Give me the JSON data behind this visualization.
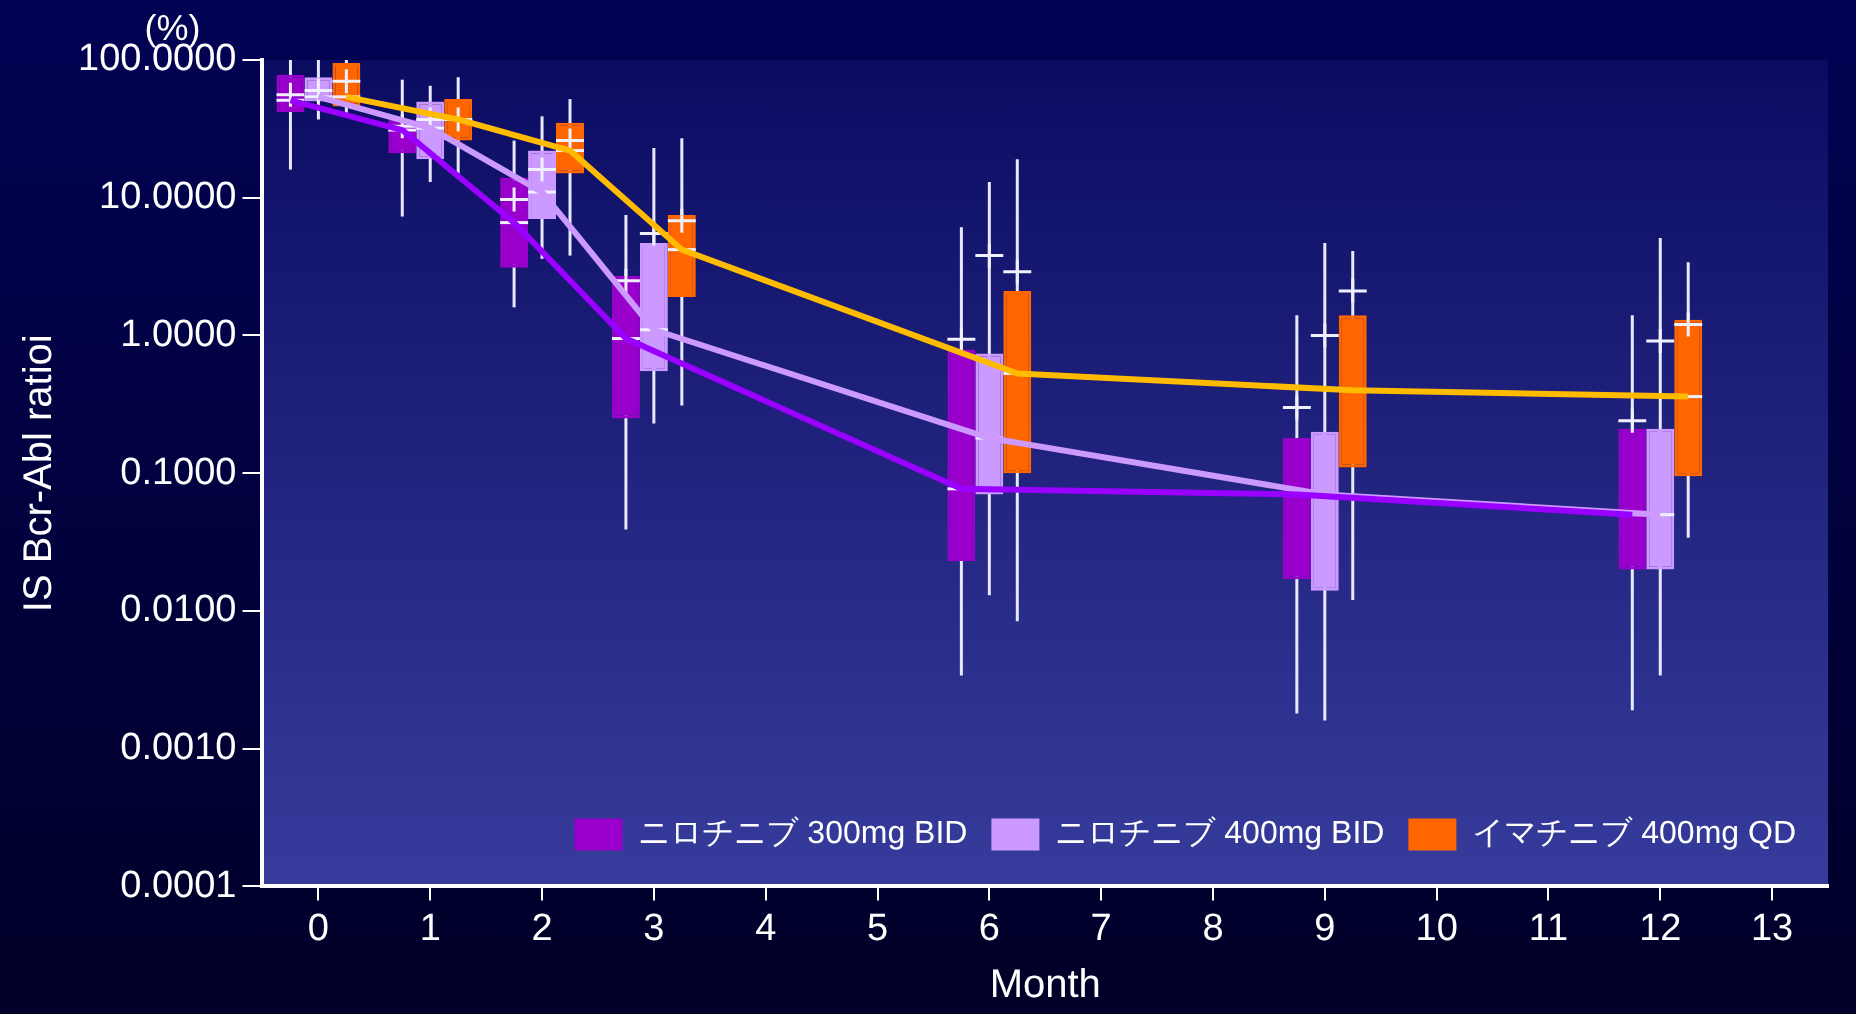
{
  "chart_data": {
    "type": "box",
    "xlabel": "Month",
    "ylabel": "IS Bcr-Abl ratioi",
    "annotations": [
      "(%)"
    ],
    "x": [
      0,
      1,
      2,
      3,
      6,
      9,
      12
    ],
    "xlim": [
      -0.5,
      13.5
    ],
    "xticks": [
      0,
      1,
      2,
      3,
      4,
      5,
      6,
      7,
      8,
      9,
      10,
      11,
      12,
      13
    ],
    "ylim": [
      0.0001,
      100
    ],
    "yticks": [
      {
        "value": 0.0001,
        "label": "0.0001"
      },
      {
        "value": 0.001,
        "label": "0.0010"
      },
      {
        "value": 0.01,
        "label": "0.0100"
      },
      {
        "value": 0.1,
        "label": "0.1000"
      },
      {
        "value": 1,
        "label": "1.0000"
      },
      {
        "value": 10,
        "label": "10.0000"
      },
      {
        "value": 100,
        "label": "100.0000"
      }
    ],
    "log": "y",
    "grid": false,
    "legend": "bottom right",
    "series": [
      {
        "name": "ニロチニブ 300mg BID",
        "color": "#9900cc",
        "boxes": [
          {
            "low": 16,
            "q1": 42,
            "median": 51,
            "q3": 78,
            "high": 100,
            "mean": 56
          },
          {
            "low": 7.3,
            "q1": 21,
            "median": 31,
            "q3": 37,
            "high": 72,
            "mean": 33
          },
          {
            "low": 1.6,
            "q1": 3.1,
            "median": 6.6,
            "q3": 14,
            "high": 26,
            "mean": 9.7
          },
          {
            "low": 0.039,
            "q1": 0.25,
            "median": 0.95,
            "q3": 2.7,
            "high": 7.5,
            "mean": 2.5
          },
          {
            "low": 0.0034,
            "q1": 0.023,
            "median": 0.077,
            "q3": 0.79,
            "high": 6.1,
            "mean": 0.94
          },
          {
            "low": 0.0018,
            "q1": 0.017,
            "median": 0.07,
            "q3": 0.18,
            "high": 1.4,
            "mean": 0.3
          },
          {
            "low": 0.0019,
            "q1": 0.02,
            "median": 0.05,
            "q3": 0.21,
            "high": 1.4,
            "mean": 0.24
          }
        ]
      },
      {
        "name": "ニロチニブ 400mg BID",
        "color": "#cc99ff",
        "boxes": [
          {
            "low": 37,
            "q1": 50,
            "median": 54,
            "q3": 75,
            "high": 100,
            "mean": 60
          },
          {
            "low": 13,
            "q1": 19,
            "median": 32,
            "q3": 50,
            "high": 65,
            "mean": 37
          },
          {
            "low": 3.6,
            "q1": 7,
            "median": 11,
            "q3": 22,
            "high": 39,
            "mean": 16
          },
          {
            "low": 0.23,
            "q1": 0.55,
            "median": 1.1,
            "q3": 4.7,
            "high": 23,
            "mean": 5.5
          },
          {
            "low": 0.013,
            "q1": 0.07,
            "median": 0.18,
            "q3": 0.74,
            "high": 13,
            "mean": 3.8
          },
          {
            "low": 0.0016,
            "q1": 0.014,
            "median": 0.07,
            "q3": 0.2,
            "high": 4.7,
            "mean": 1
          },
          {
            "low": 0.0034,
            "q1": 0.02,
            "median": 0.05,
            "q3": 0.21,
            "high": 5.1,
            "mean": 0.91
          }
        ]
      },
      {
        "name": "イマチニブ 400mg QD",
        "color": "#ff6600",
        "boxes": [
          {
            "low": 40,
            "q1": 46,
            "median": 54,
            "q3": 95,
            "high": 100,
            "mean": 70
          },
          {
            "low": 15,
            "q1": 26,
            "median": 37,
            "q3": 52,
            "high": 75,
            "mean": 37
          },
          {
            "low": 3.8,
            "q1": 15,
            "median": 22,
            "q3": 35,
            "high": 52,
            "mean": 26
          },
          {
            "low": 0.31,
            "q1": 1.9,
            "median": 4.2,
            "q3": 7.5,
            "high": 27,
            "mean": 6.8
          },
          {
            "low": 0.0084,
            "q1": 0.1,
            "median": 0.53,
            "q3": 2.1,
            "high": 19,
            "mean": 2.9
          },
          {
            "low": 0.012,
            "q1": 0.11,
            "median": 0.4,
            "q3": 1.4,
            "high": 4.1,
            "mean": 2.1
          },
          {
            "low": 0.034,
            "q1": 0.095,
            "median": 0.36,
            "q3": 1.3,
            "high": 3.4,
            "mean": 1.2
          }
        ]
      },
      {
        "type": "line",
        "color": "#9900ff",
        "x": [
          -0.25,
          0.75,
          1.75,
          2.75,
          5.75,
          8.75,
          11.75
        ],
        "values": [
          51,
          31,
          6.6,
          0.95,
          0.077,
          0.07,
          0.05
        ]
      },
      {
        "type": "line",
        "color": "#cc99ff",
        "x": [
          0,
          1,
          2,
          3,
          6,
          9,
          12
        ],
        "values": [
          54,
          32,
          11,
          1.1,
          0.18,
          0.07,
          0.05
        ]
      },
      {
        "type": "line",
        "color": "#ffbb00",
        "x": [
          0.25,
          1.25,
          2.25,
          3.25,
          6.25,
          9.25,
          12.25
        ],
        "values": [
          54,
          37,
          22,
          4.2,
          0.53,
          0.4,
          0.36
        ]
      }
    ]
  }
}
